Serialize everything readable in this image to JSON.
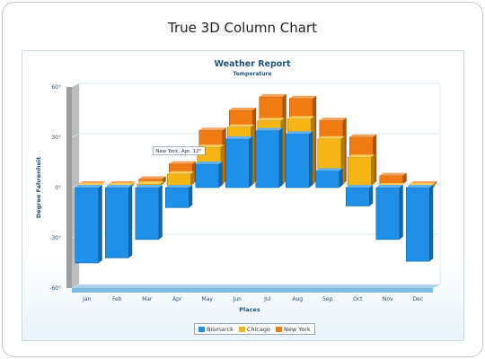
{
  "page": {
    "title": "True 3D Column Chart"
  },
  "chart_data": {
    "type": "bar",
    "title": "Weather Report",
    "subtitle": "Temperature",
    "xlabel": "Places",
    "ylabel": "Degree Fahrenheit",
    "categories": [
      "Jan",
      "Feb",
      "Mar",
      "Apr",
      "May",
      "Jun",
      "Jul",
      "Aug",
      "Sep",
      "Oct",
      "Nov",
      "Dec"
    ],
    "ylim": [
      -60,
      60
    ],
    "yticks": [
      -60,
      -30,
      0,
      30,
      60
    ],
    "ytick_labels": [
      "-60°",
      "-30°",
      "0°",
      "30°",
      "60°"
    ],
    "grid": true,
    "legend_position": "bottom",
    "series": [
      {
        "name": "Bismarck",
        "color": "#1f8fe8",
        "values": [
          -45,
          -42,
          -31,
          -12,
          14,
          29,
          34,
          32,
          10,
          -11,
          -31,
          -44
        ]
      },
      {
        "name": "Chicago",
        "color": "#f5b514",
        "values": [
          0,
          -1,
          1,
          7,
          23,
          35,
          39,
          40,
          28,
          17,
          0,
          -2
        ]
      },
      {
        "name": "New York",
        "color": "#f07a13",
        "values": [
          0,
          0,
          3,
          12,
          32,
          44,
          52,
          51,
          38,
          28,
          5,
          -1
        ]
      }
    ],
    "tooltip": {
      "text": "New York, Apr. 12°",
      "series": "New York",
      "category": "Apr"
    }
  }
}
